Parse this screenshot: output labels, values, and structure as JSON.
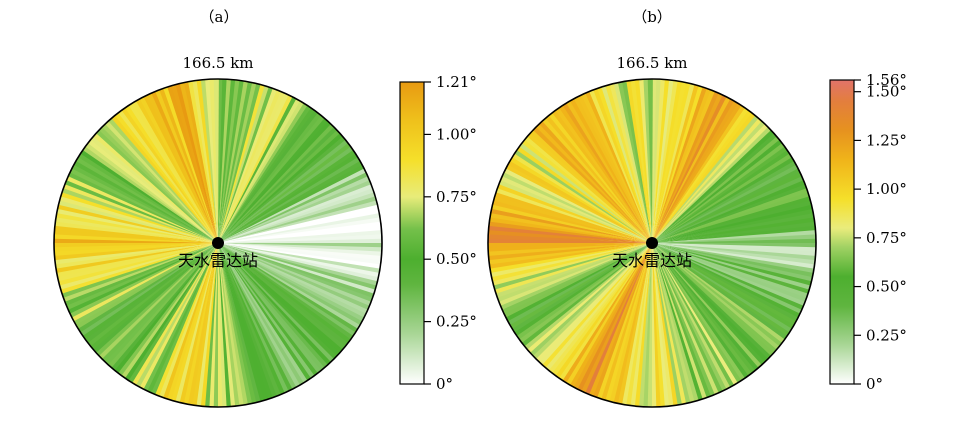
{
  "chart_data": [
    {
      "panel_label": "（a）",
      "range_label": "166.5 km",
      "station_label": "天水雷达站",
      "type": "polar-heatmap",
      "value_unit": "°",
      "colorbar": {
        "range": [
          0,
          1.21
        ],
        "ticks": [
          {
            "value": 0,
            "label": "0°"
          },
          {
            "value": 0.25,
            "label": "0.25°"
          },
          {
            "value": 0.5,
            "label": "0.50°"
          },
          {
            "value": 0.75,
            "label": "0.75°"
          },
          {
            "value": 1.0,
            "label": "1.00°"
          },
          {
            "value": 1.21,
            "label": "1.21°"
          }
        ],
        "stops": [
          {
            "value": 0.0,
            "color": "#ffffff"
          },
          {
            "value": 0.2,
            "color": "#a9d696"
          },
          {
            "value": 0.4,
            "color": "#5fb53f"
          },
          {
            "value": 0.5,
            "color": "#4daf2f"
          },
          {
            "value": 0.62,
            "color": "#74c04a"
          },
          {
            "value": 0.75,
            "color": "#e8ec7a"
          },
          {
            "value": 0.9,
            "color": "#f5df2a"
          },
          {
            "value": 1.05,
            "color": "#efc21c"
          },
          {
            "value": 1.21,
            "color": "#e89a12"
          }
        ]
      },
      "azimuth_profile": [
        {
          "az": 0,
          "value": 0.55
        },
        {
          "az": 12,
          "value": 0.62
        },
        {
          "az": 22,
          "value": 0.85
        },
        {
          "az": 34,
          "value": 0.56
        },
        {
          "az": 48,
          "value": 0.52
        },
        {
          "az": 60,
          "value": 0.42
        },
        {
          "az": 72,
          "value": 0.08
        },
        {
          "az": 86,
          "value": 0.03
        },
        {
          "az": 100,
          "value": 0.1
        },
        {
          "az": 118,
          "value": 0.3
        },
        {
          "az": 134,
          "value": 0.38
        },
        {
          "az": 150,
          "value": 0.32
        },
        {
          "az": 164,
          "value": 0.55
        },
        {
          "az": 180,
          "value": 0.65
        },
        {
          "az": 196,
          "value": 0.92
        },
        {
          "az": 212,
          "value": 0.58
        },
        {
          "az": 232,
          "value": 0.54
        },
        {
          "az": 252,
          "value": 0.72
        },
        {
          "az": 268,
          "value": 1.05
        },
        {
          "az": 284,
          "value": 0.82
        },
        {
          "az": 300,
          "value": 0.56
        },
        {
          "az": 316,
          "value": 0.8
        },
        {
          "az": 332,
          "value": 0.92
        },
        {
          "az": 346,
          "value": 1.08
        }
      ]
    },
    {
      "panel_label": "（b）",
      "range_label": "166.5 km",
      "station_label": "天水雷达站",
      "type": "polar-heatmap",
      "value_unit": "°",
      "colorbar": {
        "range": [
          0,
          1.56
        ],
        "ticks": [
          {
            "value": 0,
            "label": "0°"
          },
          {
            "value": 0.25,
            "label": "0.25°"
          },
          {
            "value": 0.5,
            "label": "0.50°"
          },
          {
            "value": 0.75,
            "label": "0.75°"
          },
          {
            "value": 1.0,
            "label": "1.00°"
          },
          {
            "value": 1.25,
            "label": "1.25°"
          },
          {
            "value": 1.5,
            "label": "1.50°"
          },
          {
            "value": 1.56,
            "label": "1.56°"
          }
        ],
        "stops": [
          {
            "value": 0.0,
            "color": "#ffffff"
          },
          {
            "value": 0.2,
            "color": "#a9d696"
          },
          {
            "value": 0.4,
            "color": "#5fb53f"
          },
          {
            "value": 0.55,
            "color": "#4daf2f"
          },
          {
            "value": 0.7,
            "color": "#9fd163"
          },
          {
            "value": 0.8,
            "color": "#eaec7c"
          },
          {
            "value": 0.95,
            "color": "#f5df2a"
          },
          {
            "value": 1.15,
            "color": "#f0b41a"
          },
          {
            "value": 1.3,
            "color": "#e6921f"
          },
          {
            "value": 1.45,
            "color": "#e37e3d"
          },
          {
            "value": 1.56,
            "color": "#e2736a"
          }
        ]
      },
      "azimuth_profile": [
        {
          "az": 0,
          "value": 0.7
        },
        {
          "az": 12,
          "value": 0.95
        },
        {
          "az": 24,
          "value": 1.28
        },
        {
          "az": 36,
          "value": 0.9
        },
        {
          "az": 50,
          "value": 0.55
        },
        {
          "az": 66,
          "value": 0.48
        },
        {
          "az": 80,
          "value": 0.5
        },
        {
          "az": 92,
          "value": 0.15
        },
        {
          "az": 104,
          "value": 0.32
        },
        {
          "az": 120,
          "value": 0.52
        },
        {
          "az": 140,
          "value": 0.58
        },
        {
          "az": 158,
          "value": 0.62
        },
        {
          "az": 172,
          "value": 0.78
        },
        {
          "az": 188,
          "value": 0.88
        },
        {
          "az": 204,
          "value": 1.28
        },
        {
          "az": 222,
          "value": 0.72
        },
        {
          "az": 240,
          "value": 0.55
        },
        {
          "az": 256,
          "value": 0.88
        },
        {
          "az": 270,
          "value": 1.45
        },
        {
          "az": 284,
          "value": 1.05
        },
        {
          "az": 300,
          "value": 0.85
        },
        {
          "az": 316,
          "value": 1.1
        },
        {
          "az": 330,
          "value": 1.2
        },
        {
          "az": 346,
          "value": 0.82
        }
      ]
    }
  ]
}
